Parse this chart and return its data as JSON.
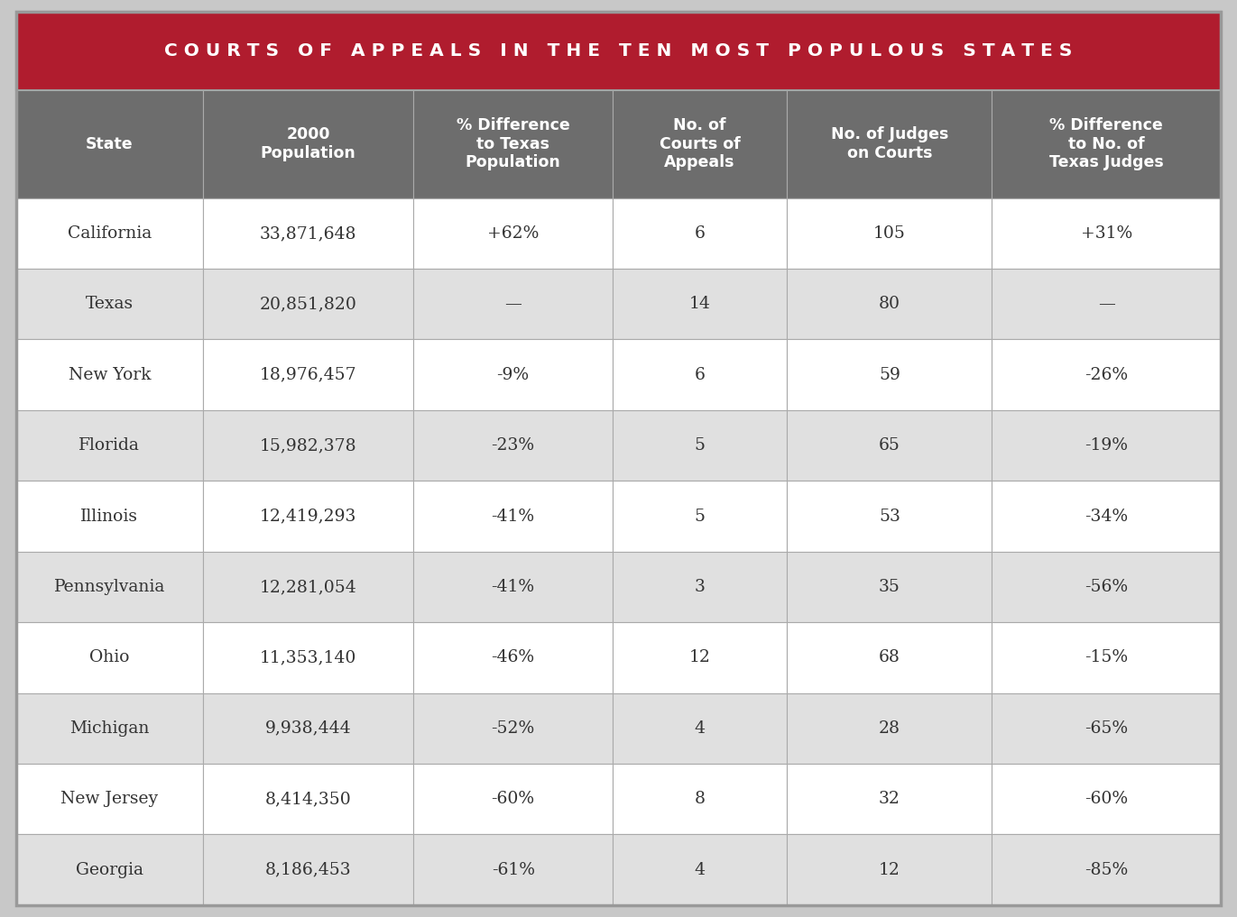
{
  "title": "C O U R T S   O F   A P P E A L S   I N   T H E   T E N   M O S T   P O P U L O U S   S T A T E S",
  "title_bg": "#b01c2e",
  "title_color": "#ffffff",
  "header_bg": "#6d6d6d",
  "header_color": "#ffffff",
  "col_headers": [
    "State",
    "2000\nPopulation",
    "% Difference\nto Texas\nPopulation",
    "No. of\nCourts of\nAppeals",
    "No. of Judges\non Courts",
    "% Difference\nto No. of\nTexas Judges"
  ],
  "rows": [
    [
      "California",
      "33,871,648",
      "+62%",
      "6",
      "105",
      "+31%"
    ],
    [
      "Texas",
      "20,851,820",
      "—",
      "14",
      "80",
      "—"
    ],
    [
      "New York",
      "18,976,457",
      "-9%",
      "6",
      "59",
      "-26%"
    ],
    [
      "Florida",
      "15,982,378",
      "-23%",
      "5",
      "65",
      "-19%"
    ],
    [
      "Illinois",
      "12,419,293",
      "-41%",
      "5",
      "53",
      "-34%"
    ],
    [
      "Pennsylvania",
      "12,281,054",
      "-41%",
      "3",
      "35",
      "-56%"
    ],
    [
      "Ohio",
      "11,353,140",
      "-46%",
      "12",
      "68",
      "-15%"
    ],
    [
      "Michigan",
      "9,938,444",
      "-52%",
      "4",
      "28",
      "-65%"
    ],
    [
      "New Jersey",
      "8,414,350",
      "-60%",
      "8",
      "32",
      "-60%"
    ],
    [
      "Georgia",
      "8,186,453",
      "-61%",
      "4",
      "12",
      "-85%"
    ]
  ],
  "row_colors_even": "#ffffff",
  "row_colors_odd": "#e0e0e0",
  "cell_text_color": "#333333",
  "border_color": "#aaaaaa",
  "outer_border_color": "#999999",
  "figsize": [
    13.71,
    10.17
  ],
  "dpi": 100
}
